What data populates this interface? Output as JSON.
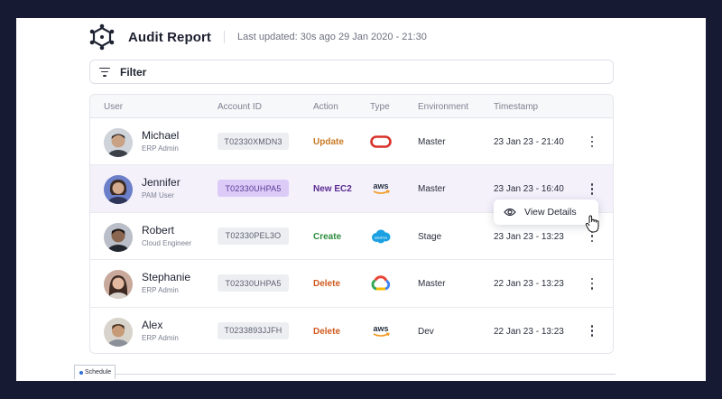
{
  "header": {
    "title": "Audit Report",
    "last_updated": "Last updated: 30s ago 29 Jan 2020 - 21:30"
  },
  "filter": {
    "label": "Filter"
  },
  "table": {
    "columns": [
      "User",
      "Account ID",
      "Action",
      "Type",
      "Environment",
      "Timestamp"
    ],
    "rows": [
      {
        "name": "Michael",
        "role": "ERP Admin",
        "account_id": "T02330XMDN3",
        "action": "Update",
        "action_color": "#c77a22",
        "type_icon": "oracle-icon",
        "environment": "Master",
        "timestamp": "23 Jan 23 - 21:40"
      },
      {
        "name": "Jennifer",
        "role": "PAM User",
        "account_id": "T02330UHPA5",
        "action": "New EC2",
        "action_color": "#5b2a91",
        "type_icon": "aws-icon",
        "environment": "Master",
        "timestamp": "23 Jan 23 - 16:40"
      },
      {
        "name": "Robert",
        "role": "Cloud Engineer",
        "account_id": "T02330PEL3O",
        "action": "Create",
        "action_color": "#2e8b3c",
        "type_icon": "salesforce-icon",
        "environment": "Stage",
        "timestamp": "23 Jan 23 - 13:23"
      },
      {
        "name": "Stephanie",
        "role": "ERP Admin",
        "account_id": "T02330UHPA5",
        "action": "Delete",
        "action_color": "#d05a1e",
        "type_icon": "google-cloud-icon",
        "environment": "Master",
        "timestamp": "22 Jan 23 - 13:23"
      },
      {
        "name": "Alex",
        "role": "ERP Admin",
        "account_id": "T0233893JJFH",
        "action": "Delete",
        "action_color": "#d05a1e",
        "type_icon": "aws-icon",
        "environment": "Dev",
        "timestamp": "22 Jan 23 - 13:23"
      }
    ]
  },
  "popup": {
    "label": "View Details"
  },
  "bottom_tab": {
    "label": "Schedule"
  },
  "colors": {
    "accent_purple": "#5b2a91",
    "selected_row_bg": "#f4f1fb",
    "account_selected_bg": "#dccbf7",
    "page_bg": "#161a33"
  }
}
